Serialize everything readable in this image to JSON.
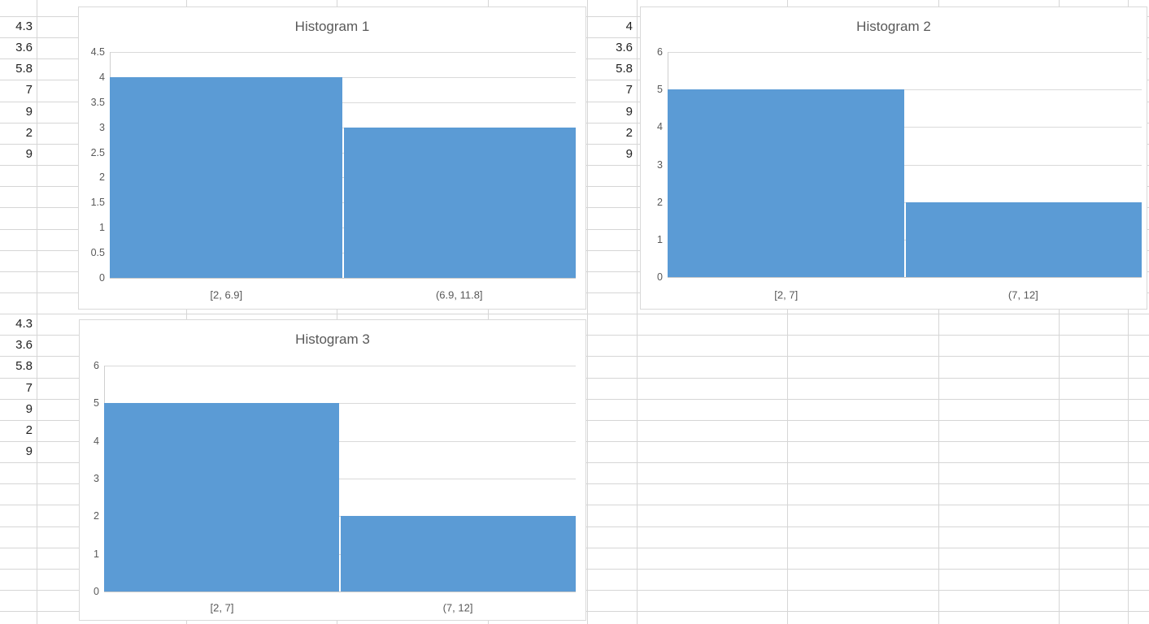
{
  "sheet": {
    "columns": [
      {
        "name": "data-column-left-top",
        "values": [
          "4.3",
          "3.6",
          "5.8",
          "7",
          "9",
          "2",
          "9"
        ]
      },
      {
        "name": "data-column-right-top",
        "values": [
          "4",
          "3.6",
          "5.8",
          "7",
          "9",
          "2",
          "9"
        ]
      },
      {
        "name": "data-column-left-bottom",
        "values": [
          "4.3",
          "3.6",
          "5.8",
          "7",
          "9",
          "2",
          "9"
        ]
      }
    ]
  },
  "colors": {
    "bar_fill": "#5B9BD5",
    "chart_border": "#d9d9d9",
    "sheet_gridline": "#d6d6d6",
    "chart_text": "#595959",
    "cell_text": "#1f1f1f"
  },
  "chart_data": [
    {
      "type": "bar",
      "title": "Histogram 1",
      "categories": [
        "[2, 6.9]",
        "(6.9, 11.8]"
      ],
      "values": [
        4,
        3
      ],
      "xlabel": "",
      "ylabel": "",
      "ylim": [
        0,
        4.5
      ],
      "ytick_step": 0.5,
      "yticks": [
        "4.5",
        "4",
        "3.5",
        "3",
        "2.5",
        "2",
        "1.5",
        "1",
        "0.5",
        "0"
      ],
      "grid": true,
      "legend": "none",
      "bar_color": "#5B9BD5"
    },
    {
      "type": "bar",
      "title": "Histogram 2",
      "categories": [
        "[2, 7]",
        "(7, 12]"
      ],
      "values": [
        5,
        2
      ],
      "xlabel": "",
      "ylabel": "",
      "ylim": [
        0,
        6
      ],
      "ytick_step": 1,
      "yticks": [
        "6",
        "5",
        "4",
        "3",
        "2",
        "1",
        "0"
      ],
      "grid": true,
      "legend": "none",
      "bar_color": "#5B9BD5"
    },
    {
      "type": "bar",
      "title": "Histogram 3",
      "categories": [
        "[2, 7]",
        "(7, 12]"
      ],
      "values": [
        5,
        2
      ],
      "xlabel": "",
      "ylabel": "",
      "ylim": [
        0,
        6
      ],
      "ytick_step": 1,
      "yticks": [
        "6",
        "5",
        "4",
        "3",
        "2",
        "1",
        "0"
      ],
      "grid": true,
      "legend": "none",
      "bar_color": "#5B9BD5"
    }
  ]
}
